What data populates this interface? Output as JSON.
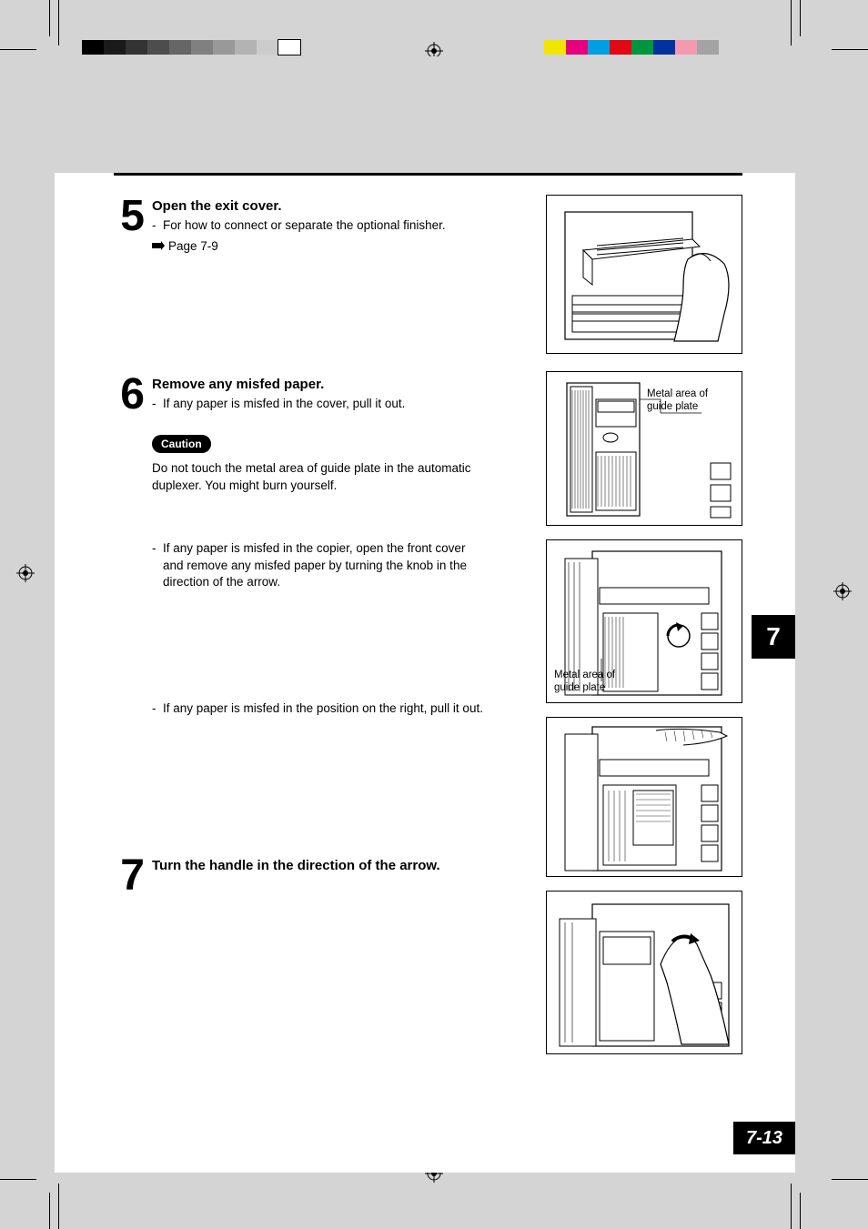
{
  "registration": {
    "gray_swatches": [
      "#000000",
      "#1a1a1a",
      "#333333",
      "#4d4d4d",
      "#666666",
      "#808080",
      "#999999",
      "#b3b3b3",
      "#cccccc",
      "#ffffff"
    ],
    "color_swatches": [
      "#f2e600",
      "#e6007e",
      "#009fe3",
      "#e30613",
      "#009640",
      "#0033a0",
      "#f39ab0",
      "#a3a3a3"
    ]
  },
  "page": {
    "chapter_tab": "7",
    "page_number": "7-13"
  },
  "steps": {
    "s5": {
      "num": "5",
      "title": "Open the exit cover.",
      "desc": "For how to connect or separate the optional finisher.",
      "page_ref": "Page 7-9"
    },
    "s6": {
      "num": "6",
      "title": "Remove any misfed paper.",
      "desc": "If any paper is misfed in the cover, pull it out.",
      "caution_label": "Caution",
      "caution_text": "Do not touch the metal area of guide plate in the automatic duplexer.  You might burn yourself.",
      "cont1": "If any paper is misfed in the copier, open the front cover and remove any misfed paper by turning the knob in the direction of the arrow.",
      "cont2": "If any paper is misfed in the position on the right, pull it out."
    },
    "s7": {
      "num": "7",
      "title": "Turn the handle in the direction of the arrow."
    }
  },
  "fig_labels": {
    "fig2": "Metal area of\nguide plate",
    "fig3": "Metal area of\nguide plate"
  }
}
